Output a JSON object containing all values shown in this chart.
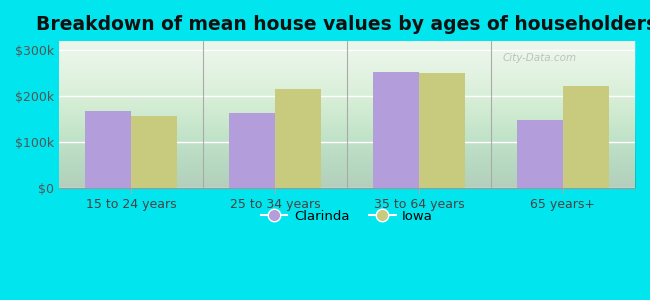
{
  "title": "Breakdown of mean house values by ages of householders",
  "categories": [
    "15 to 24 years",
    "25 to 34 years",
    "35 to 64 years",
    "65 years+"
  ],
  "clarinda_values": [
    168000,
    163000,
    253000,
    148000
  ],
  "iowa_values": [
    157000,
    215000,
    250000,
    222000
  ],
  "clarinda_color": "#b39ddb",
  "iowa_color": "#c8ca7e",
  "ylim": [
    0,
    320000
  ],
  "yticks": [
    0,
    100000,
    200000,
    300000
  ],
  "ytick_labels": [
    "$0",
    "$100k",
    "$200k",
    "$300k"
  ],
  "plot_bg": "#e8f5e9",
  "outer_background": "#00e5ee",
  "title_fontsize": 13.5,
  "bar_width": 0.32,
  "legend_labels": [
    "Clarinda",
    "Iowa"
  ],
  "watermark": "City-Data.com"
}
